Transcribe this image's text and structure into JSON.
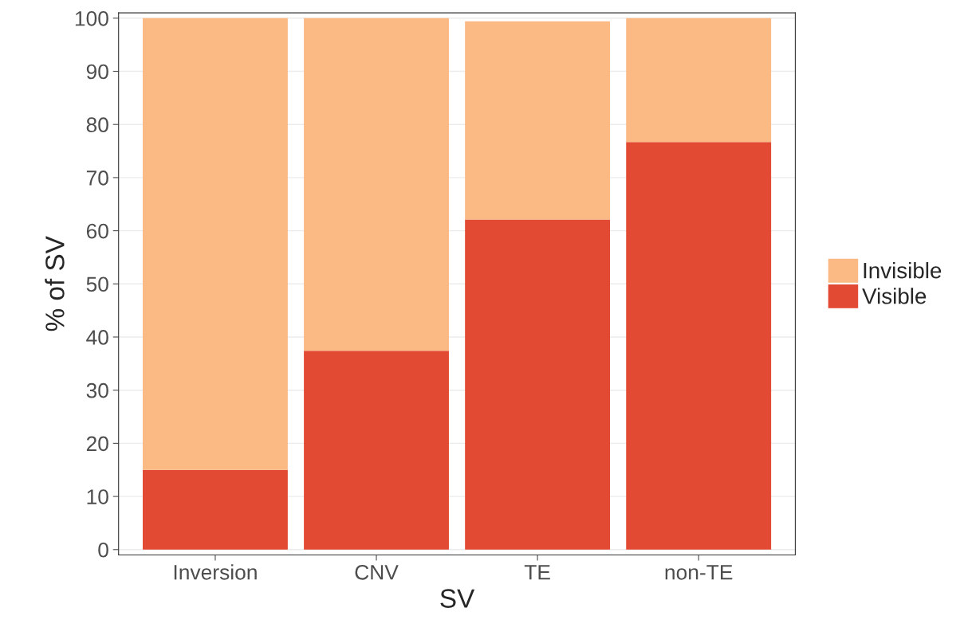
{
  "chart_data": {
    "type": "bar",
    "stacked": true,
    "xlabel": "SV",
    "ylabel": "% of SV",
    "categories": [
      "Inversion",
      "CNV",
      "TE",
      "non-TE"
    ],
    "series": [
      {
        "name": "Visible",
        "color": "#e34a33",
        "values": [
          15,
          37.4,
          62.1,
          76.7
        ]
      },
      {
        "name": "Invisible",
        "color": "#fbb984",
        "values": [
          85,
          62.6,
          37.3,
          23.3
        ]
      }
    ],
    "ylim": [
      -1,
      101
    ],
    "yticks": [
      0,
      10,
      20,
      30,
      40,
      50,
      60,
      70,
      80,
      90,
      100
    ],
    "grid": "y",
    "legend": "right"
  }
}
